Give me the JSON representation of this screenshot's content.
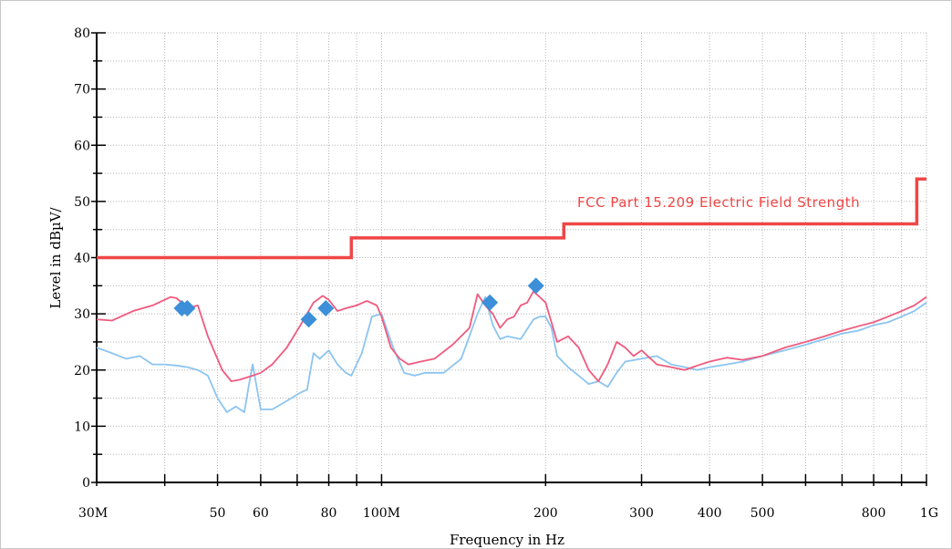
{
  "chart_data": {
    "type": "line",
    "title": "",
    "xlabel": "Frequency in Hz",
    "ylabel": "Level in dBµV/",
    "x_scale": "log",
    "xlim": [
      30,
      1000
    ],
    "ylim": [
      0,
      80
    ],
    "grid": true,
    "x_ticks": [
      {
        "value": 30,
        "label": "30M"
      },
      {
        "value": 50,
        "label": "50"
      },
      {
        "value": 60,
        "label": "60"
      },
      {
        "value": 80,
        "label": "80"
      },
      {
        "value": 100,
        "label": "100M"
      },
      {
        "value": 200,
        "label": "200"
      },
      {
        "value": 300,
        "label": "300"
      },
      {
        "value": 400,
        "label": "400"
      },
      {
        "value": 500,
        "label": "500"
      },
      {
        "value": 800,
        "label": "800"
      },
      {
        "value": 1000,
        "label": "1G"
      }
    ],
    "y_ticks": [
      0,
      10,
      20,
      30,
      40,
      50,
      60,
      70,
      80
    ],
    "limit_line": {
      "name": "FCC Part 15.209 Electric Field Strength",
      "color": "#f04646",
      "x": [
        30,
        88,
        88,
        216,
        216,
        960,
        960,
        1000
      ],
      "y": [
        40,
        40,
        43.5,
        43.5,
        46,
        46,
        54,
        54
      ]
    },
    "series": [
      {
        "color": "#f05a7e",
        "x": [
          30,
          32,
          35,
          38,
          40,
          41,
          42,
          43,
          44,
          46,
          48,
          51,
          53,
          55,
          58,
          60,
          63,
          67,
          71,
          75,
          78,
          80,
          83,
          86,
          90,
          94,
          98,
          100,
          104,
          108,
          112,
          118,
          125,
          135,
          145,
          150,
          155,
          160,
          165,
          170,
          175,
          180,
          185,
          190,
          195,
          200,
          205,
          210,
          220,
          230,
          240,
          250,
          255,
          260,
          270,
          280,
          290,
          300,
          320,
          340,
          360,
          380,
          400,
          430,
          460,
          500,
          550,
          600,
          650,
          700,
          750,
          800,
          850,
          900,
          950,
          1000
        ],
        "y": [
          29,
          28.8,
          30.5,
          31.5,
          32.5,
          33,
          32.8,
          32,
          31,
          31.5,
          26,
          20,
          18,
          18.3,
          19,
          19.5,
          21,
          24,
          28,
          32,
          33.2,
          32.5,
          30.5,
          31,
          31.5,
          32.3,
          31.5,
          29.5,
          24,
          22,
          21,
          21.5,
          22,
          24.5,
          27.5,
          33.5,
          31.5,
          30,
          27.5,
          29,
          29.5,
          31.5,
          32,
          34,
          33,
          32,
          28.5,
          25,
          26,
          24,
          20,
          18,
          19.5,
          21,
          25,
          24,
          22.5,
          23.5,
          21,
          20.5,
          20,
          20.8,
          21.5,
          22.2,
          21.8,
          22.5,
          24,
          25,
          26,
          27,
          27.8,
          28.5,
          29.5,
          30.5,
          31.5,
          33
        ]
      },
      {
        "color": "#8cc4f0",
        "x": [
          30,
          32,
          34,
          36,
          38,
          40,
          42,
          44,
          46,
          48,
          50,
          52,
          54,
          56,
          57,
          58,
          60,
          63,
          67,
          71,
          73,
          75,
          77,
          80,
          83,
          86,
          88,
          92,
          96,
          100,
          105,
          110,
          115,
          120,
          130,
          140,
          150,
          155,
          160,
          165,
          170,
          180,
          190,
          195,
          200,
          205,
          210,
          220,
          230,
          240,
          250,
          260,
          270,
          280,
          300,
          320,
          340,
          360,
          380,
          400,
          430,
          460,
          500,
          550,
          600,
          650,
          700,
          750,
          800,
          850,
          900,
          950,
          1000
        ],
        "y": [
          24,
          23,
          22,
          22.5,
          21,
          21,
          20.8,
          20.5,
          20,
          19,
          15,
          12.5,
          13.5,
          12.5,
          17,
          21,
          13,
          13,
          14.5,
          16,
          16.5,
          23,
          22,
          23.5,
          21,
          19.5,
          19,
          23,
          29.5,
          30,
          24,
          19.5,
          19,
          19.5,
          19.5,
          22,
          30,
          33,
          28,
          25.5,
          26,
          25.5,
          29,
          29.5,
          29.5,
          27.5,
          22.5,
          20.5,
          19,
          17.5,
          18,
          17,
          19.5,
          21.5,
          22,
          22.5,
          21,
          20.5,
          20,
          20.5,
          21,
          21.5,
          22.5,
          23.5,
          24.5,
          25.5,
          26.5,
          27,
          28,
          28.5,
          29.5,
          30.5,
          32
        ]
      }
    ],
    "markers": {
      "color": "#3c8fd8",
      "x": [
        43,
        44,
        73.5,
        79,
        158,
        192
      ],
      "y": [
        31,
        31,
        29,
        31,
        32,
        35
      ]
    }
  }
}
